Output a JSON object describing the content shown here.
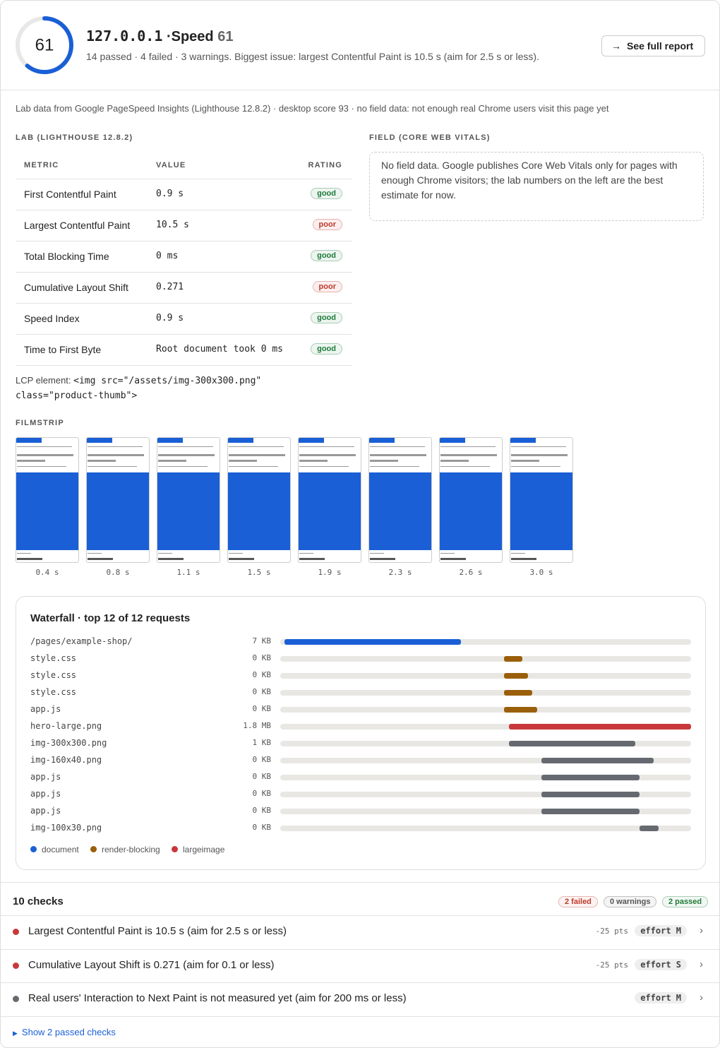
{
  "header": {
    "score": 61,
    "host": "127.0.0.1",
    "separator": "·",
    "label": "Speed",
    "summary": "14 passed · 4 failed · 3 warnings. Biggest issue: largest Contentful Paint is 10.5 s (aim for 2.5 s or less).",
    "button_icon": "→",
    "button": "See full report"
  },
  "source_note": "Lab data from Google PageSpeed Insights (Lighthouse 12.8.2) · desktop score 93 · no field data: not enough real Chrome users visit this page yet",
  "lab": {
    "heading": "LAB (LIGHTHOUSE 12.8.2)",
    "columns": [
      "METRIC",
      "VALUE",
      "RATING"
    ],
    "rows": [
      {
        "metric": "First Contentful Paint",
        "value": "0.9 s",
        "rating": "good",
        "color": "#1e7b3a"
      },
      {
        "metric": "Largest Contentful Paint",
        "value": "10.5 s",
        "rating": "poor",
        "color": "#c0392b"
      },
      {
        "metric": "Total Blocking Time",
        "value": "0 ms",
        "rating": "good",
        "color": "#1e7b3a"
      },
      {
        "metric": "Cumulative Layout Shift",
        "value": "0.271",
        "rating": "poor",
        "color": "#c0392b"
      },
      {
        "metric": "Speed Index",
        "value": "0.9 s",
        "rating": "good",
        "color": "#1e7b3a"
      },
      {
        "metric": "Time to First Byte",
        "value": "Root document took 0 ms",
        "rating": "good",
        "color": "#1e7b3a"
      }
    ],
    "lcp_label": "LCP element:",
    "lcp_code": "<img src=\"/assets/img-300x300.png\" class=\"product-thumb\">"
  },
  "field": {
    "heading": "FIELD (CORE WEB VITALS)",
    "text": "No field data. Google publishes Core Web Vitals only for pages with enough Chrome visitors; the lab numbers on the left are the best estimate for now."
  },
  "filmstrip": {
    "heading": "FILMSTRIP",
    "frames": [
      "0.4 s",
      "0.8 s",
      "1.1 s",
      "1.5 s",
      "1.9 s",
      "2.3 s",
      "2.6 s",
      "3.0 s"
    ]
  },
  "waterfall": {
    "title": "Waterfall · top 12 of 12 requests",
    "requests": [
      {
        "name": "/pages/example-shop/",
        "size": "7 KB",
        "start": 1,
        "end": 44,
        "color": "#1a5fd6"
      },
      {
        "name": "style.css",
        "size": "0 KB",
        "start": 54.5,
        "end": 59,
        "color": "#9a5f0a"
      },
      {
        "name": "style.css",
        "size": "0 KB",
        "start": 54.5,
        "end": 60.3,
        "color": "#9a5f0a"
      },
      {
        "name": "style.css",
        "size": "0 KB",
        "start": 54.5,
        "end": 61.3,
        "color": "#9a5f0a"
      },
      {
        "name": "app.js",
        "size": "0 KB",
        "start": 54.5,
        "end": 62.5,
        "color": "#9a5f0a"
      },
      {
        "name": "hero-large.png",
        "size": "1.8 MB",
        "start": 55.7,
        "end": 100,
        "color": "#c8383a"
      },
      {
        "name": "img-300x300.png",
        "size": "1 KB",
        "start": 55.7,
        "end": 86.4,
        "color": "#666a70"
      },
      {
        "name": "img-160x40.png",
        "size": "0 KB",
        "start": 63.6,
        "end": 90.9,
        "color": "#666a70"
      },
      {
        "name": "app.js",
        "size": "0 KB",
        "start": 63.6,
        "end": 87.5,
        "color": "#666a70"
      },
      {
        "name": "app.js",
        "size": "0 KB",
        "start": 63.6,
        "end": 87.5,
        "color": "#666a70"
      },
      {
        "name": "app.js",
        "size": "0 KB",
        "start": 63.6,
        "end": 87.5,
        "color": "#666a70"
      },
      {
        "name": "img-100x30.png",
        "size": "0 KB",
        "start": 87.5,
        "end": 92.1,
        "color": "#666a70"
      }
    ],
    "legend": [
      {
        "label": "document",
        "color": "#1a5fd6"
      },
      {
        "label": "render-blocking",
        "color": "#9a5f0a"
      },
      {
        "label": "largeimage",
        "color": "#c8383a"
      }
    ]
  },
  "checks": {
    "title": "10 checks",
    "badges": [
      {
        "label": "2 failed",
        "color": "#c0392b"
      },
      {
        "label": "0 warnings",
        "color": "#555555"
      },
      {
        "label": "2 passed",
        "color": "#1e7b3a"
      }
    ],
    "items": [
      {
        "text": "Largest Contentful Paint is 10.5 s (aim for 2.5 s or less)",
        "color": "#c8383a",
        "points": "-25 pts",
        "effort": "effort M"
      },
      {
        "text": "Cumulative Layout Shift is 0.271 (aim for 0.1 or less)",
        "color": "#c8383a",
        "points": "-25 pts",
        "effort": "effort S"
      },
      {
        "text": "Real users' Interaction to Next Paint is not measured yet (aim for 200 ms or less)",
        "color": "#666a70",
        "effort": "effort M"
      }
    ],
    "toggle": "Show 2 passed checks"
  }
}
